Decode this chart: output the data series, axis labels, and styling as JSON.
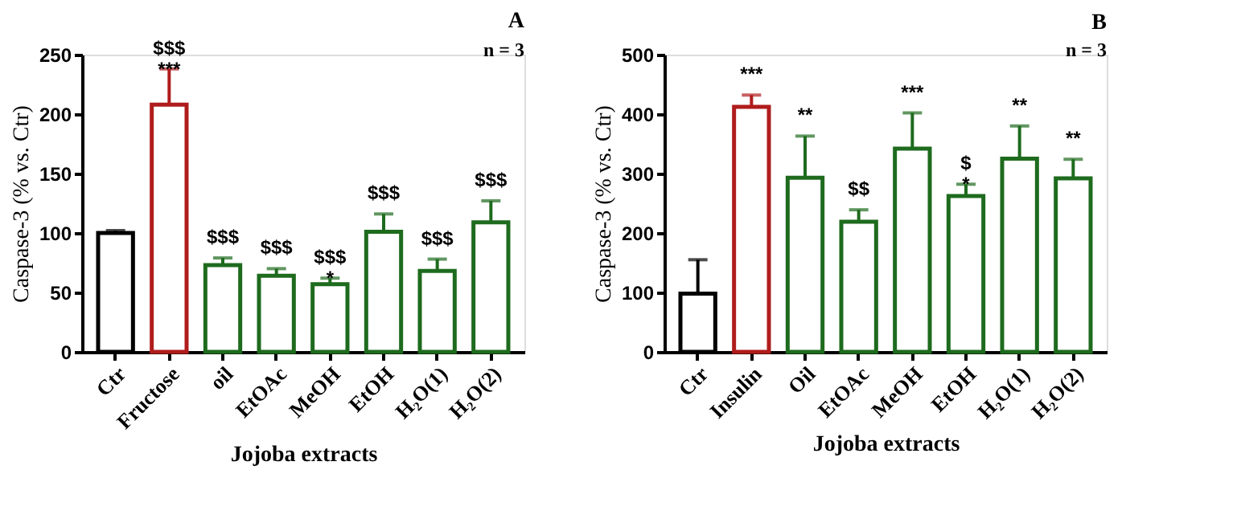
{
  "chart_data": [
    {
      "type": "bar",
      "title": "A",
      "ylabel": "Caspase-3 (% vs. Ctr)",
      "xlabel": "Jojoba extracts",
      "categories": [
        "Ctr",
        "Fructose",
        "oil",
        "EtOAc",
        "MeOH",
        "EtOH",
        "H₂O(1)",
        "H₂O(2)"
      ],
      "values": [
        100,
        208,
        73,
        64,
        57,
        101,
        68,
        109
      ],
      "errors": [
        [
          100,
          102
        ],
        [
          208,
          238
        ],
        [
          73,
          79
        ],
        [
          64,
          70
        ],
        [
          57,
          62
        ],
        [
          101,
          116
        ],
        [
          68,
          78
        ],
        [
          109,
          127
        ]
      ],
      "colors": [
        "#000000",
        "#b01c1c",
        "#1e6b1e",
        "#1e6b1e",
        "#1e6b1e",
        "#1e6b1e",
        "#1e6b1e",
        "#1e6b1e"
      ],
      "ylim": [
        0,
        250
      ],
      "yticks": [
        0,
        50,
        100,
        150,
        200,
        250
      ],
      "grid": false,
      "annotations": [
        "n = 3",
        {
          "text": "$$$\n***",
          "x": "Fructose",
          "y": 238
        },
        {
          "text": "$$$",
          "x": "oil",
          "y": 79
        },
        {
          "text": "$$$",
          "x": "EtOAc",
          "y": 70
        },
        {
          "text": "$$$\n*",
          "x": "MeOH",
          "y": 62
        },
        {
          "text": "$$$",
          "x": "EtOH",
          "y": 116
        },
        {
          "text": "$$$",
          "x": "H₂O(1)",
          "y": 78
        },
        {
          "text": "$$$",
          "x": "H₂O(2)",
          "y": 127
        }
      ]
    },
    {
      "type": "bar",
      "title": "B",
      "ylabel": "Caspase-3 (% vs. Ctr)",
      "xlabel": "Jojoba extracts",
      "categories": [
        "Ctr",
        "Insulin",
        "Oil",
        "EtOAc",
        "MeOH",
        "EtOH",
        "H₂O(1)",
        "H₂O(2)"
      ],
      "values": [
        98,
        412,
        293,
        219,
        342,
        262,
        325,
        292
      ],
      "errors": [
        [
          98,
          155
        ],
        [
          412,
          432
        ],
        [
          293,
          363
        ],
        [
          219,
          239
        ],
        [
          342,
          402
        ],
        [
          262,
          282
        ],
        [
          325,
          380
        ],
        [
          292,
          324
        ]
      ],
      "colors": [
        "#000000",
        "#b01c1c",
        "#1e6b1e",
        "#1e6b1e",
        "#1e6b1e",
        "#1e6b1e",
        "#1e6b1e",
        "#1e6b1e"
      ],
      "ylim": [
        0,
        500
      ],
      "yticks": [
        0,
        100,
        200,
        300,
        400,
        500
      ],
      "grid": false,
      "annotations": [
        "n = 3",
        {
          "text": "***",
          "x": "Insulin",
          "y": 432
        },
        {
          "text": "**",
          "x": "Oil",
          "y": 363
        },
        {
          "text": "$$",
          "x": "EtOAc",
          "y": 239
        },
        {
          "text": "***",
          "x": "MeOH",
          "y": 402
        },
        {
          "text": "$\n*",
          "x": "EtOH",
          "y": 282
        },
        {
          "text": "**",
          "x": "H₂O(1)",
          "y": 380
        },
        {
          "text": "**",
          "x": "H₂O(2)",
          "y": 324
        }
      ]
    }
  ]
}
